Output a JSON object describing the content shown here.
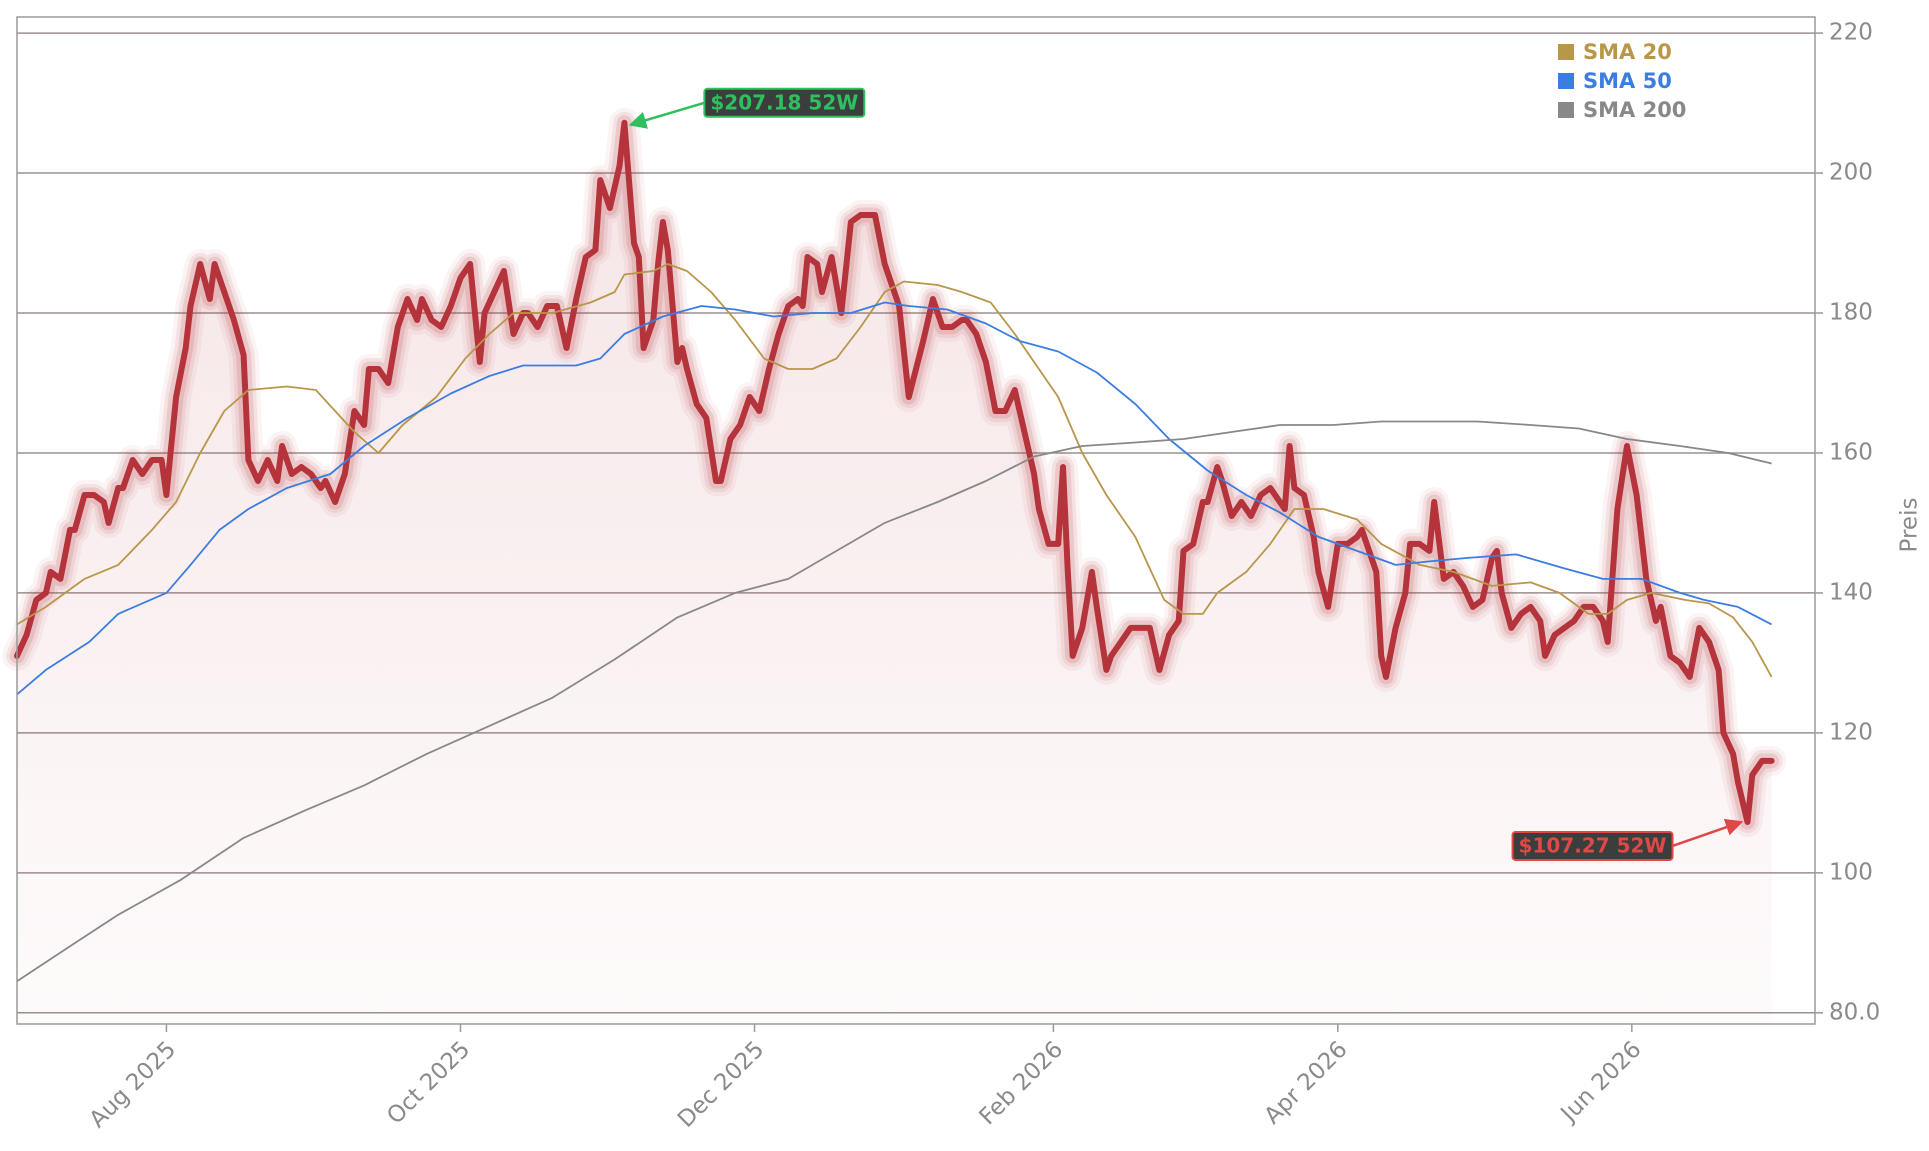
{
  "chart_data": {
    "type": "line",
    "y_axis_label": "Preis",
    "xlim": [
      0,
      373
    ],
    "ylim": [
      78.4,
      222.3
    ],
    "xticks": [
      {
        "value": 31,
        "label": "Aug 2025"
      },
      {
        "value": 92,
        "label": "Oct 2025"
      },
      {
        "value": 153,
        "label": "Dec 2025"
      },
      {
        "value": 215,
        "label": "Feb 2026"
      },
      {
        "value": 274,
        "label": "Apr 2026"
      },
      {
        "value": 335,
        "label": "Jun 2026"
      }
    ],
    "yticks": [
      {
        "value": 80,
        "label": "80.0"
      },
      100,
      120,
      140,
      160,
      180,
      200,
      220
    ],
    "grid": true,
    "legend": "upper right",
    "series": [
      {
        "color": "#b5343c",
        "area": true,
        "x": [
          0,
          2,
          4,
          6,
          7,
          9,
          11,
          12,
          14,
          16,
          18,
          19,
          21,
          22,
          24,
          26,
          28,
          30,
          31,
          33,
          35,
          36,
          38,
          40,
          41,
          43,
          45,
          47,
          48,
          50,
          52,
          54,
          55,
          57,
          59,
          61,
          63,
          64,
          66,
          68,
          70,
          72,
          73,
          75,
          77,
          79,
          81,
          83,
          84,
          86,
          88,
          90,
          92,
          94,
          96,
          97,
          99,
          101,
          103,
          105,
          106,
          108,
          110,
          112,
          114,
          116,
          118,
          120,
          121,
          123,
          125,
          126,
          128,
          129,
          130,
          132,
          133,
          134,
          135,
          137,
          138,
          139,
          141,
          143,
          145,
          146,
          148,
          150,
          152,
          154,
          156,
          158,
          160,
          162,
          163,
          164,
          166,
          167,
          169,
          171,
          173,
          175,
          178,
          180,
          183,
          185,
          188,
          190,
          192,
          194,
          196,
          197,
          199,
          201,
          203,
          205,
          207,
          208,
          211,
          212,
          214,
          216,
          217,
          218,
          219,
          221,
          223,
          224,
          226,
          227,
          229,
          231,
          233,
          235,
          237,
          239,
          241,
          242,
          244,
          246,
          247,
          249,
          250,
          252,
          254,
          256,
          258,
          260,
          262,
          263,
          264,
          265,
          267,
          269,
          270,
          272,
          274,
          276,
          278,
          279,
          282,
          283,
          284,
          286,
          288,
          289,
          291,
          293,
          294,
          296,
          298,
          300,
          302,
          304,
          306,
          307,
          308,
          310,
          312,
          314,
          316,
          317,
          319,
          321,
          323,
          325,
          327,
          329,
          330,
          332,
          334,
          336,
          338,
          340,
          341,
          343,
          345,
          347,
          349,
          351,
          353,
          354,
          356,
          357,
          359,
          360,
          362,
          364
        ],
        "values": [
          131,
          134,
          139,
          140,
          143,
          142,
          149,
          149,
          154,
          154,
          153,
          150,
          155,
          155,
          159,
          157,
          159,
          159,
          154,
          168,
          175,
          181,
          187,
          182,
          187,
          183,
          179,
          174,
          159,
          156,
          159,
          156,
          161,
          157,
          158,
          157,
          155,
          156,
          153,
          157,
          166,
          164,
          172,
          172,
          170,
          178,
          182,
          179,
          182,
          179,
          178,
          181,
          185,
          187,
          173,
          180,
          183,
          186,
          177,
          180,
          180,
          178,
          181,
          181,
          175,
          182,
          188,
          189,
          199,
          195,
          201,
          207.18,
          190,
          188,
          175,
          179,
          187,
          193,
          189,
          173,
          175,
          172,
          167,
          165,
          156,
          156,
          162,
          164,
          168,
          166,
          172,
          177,
          181,
          182,
          181,
          188,
          187,
          183,
          188,
          180,
          193,
          194,
          194,
          187,
          181,
          168,
          176,
          182,
          178,
          178,
          179,
          179,
          177,
          173,
          166,
          166,
          169,
          166,
          157,
          152,
          147,
          147,
          158,
          143,
          131,
          135,
          143,
          138,
          129,
          131,
          133,
          135,
          135,
          135,
          129,
          134,
          136,
          146,
          147,
          153,
          153,
          158,
          156,
          151,
          153,
          151,
          154,
          155,
          153,
          152,
          161,
          155,
          154,
          148,
          143,
          138,
          147,
          147,
          148,
          149,
          143,
          131,
          128,
          135,
          140,
          147,
          147,
          146,
          153,
          142,
          143,
          141,
          138,
          139,
          145,
          146,
          140,
          135,
          137,
          138,
          136,
          131,
          134,
          135,
          136,
          138,
          138,
          136,
          133,
          152,
          161,
          154,
          142,
          136,
          138,
          131,
          130,
          128,
          135,
          133,
          129,
          120,
          117,
          113,
          107.27,
          114,
          116,
          116
        ]
      },
      {
        "name": "SMA 20",
        "color": "#b8964a",
        "x": [
          0,
          6,
          14,
          21,
          28,
          33,
          38,
          43,
          48,
          56,
          62,
          66,
          70,
          75,
          80,
          87,
          93,
          98,
          103,
          111,
          119,
          124,
          126,
          132,
          135,
          139,
          144,
          149,
          155,
          160,
          165,
          170,
          175,
          180,
          184,
          191,
          196,
          202,
          207,
          212,
          216,
          221,
          226,
          232,
          238,
          242,
          246,
          249,
          255,
          260,
          265,
          271,
          278,
          283,
          291,
          298,
          306,
          314,
          320,
          326,
          330,
          334,
          339,
          346,
          351,
          356,
          360,
          364
        ],
        "values": [
          135.5,
          138,
          142,
          144,
          149,
          153,
          160,
          166,
          169,
          169.5,
          169,
          166,
          163,
          160,
          164,
          168,
          173.5,
          177,
          180,
          180,
          181.5,
          183,
          185.5,
          186,
          187,
          186,
          183,
          179,
          173.5,
          172,
          172,
          173.5,
          178,
          183,
          184.5,
          184,
          183,
          181.5,
          177,
          172,
          168,
          160,
          154,
          148,
          139,
          137,
          137,
          140,
          143,
          147,
          152,
          152,
          150.5,
          147,
          144,
          143,
          141,
          141.5,
          140,
          137,
          137,
          139,
          140,
          139,
          138.5,
          136.5,
          133,
          128
        ]
      },
      {
        "name": "SMA 50",
        "color": "#3b7de0",
        "x": [
          0,
          6,
          15,
          21,
          31,
          36,
          42,
          48,
          56,
          65,
          72,
          81,
          90,
          98,
          105,
          116,
          121,
          126,
          134,
          142,
          149,
          157,
          165,
          173,
          180,
          185,
          193,
          201,
          208,
          216,
          224,
          232,
          239,
          247,
          255,
          262,
          270,
          278,
          286,
          293,
          301,
          311,
          316,
          321,
          329,
          337,
          345,
          350,
          357,
          364
        ],
        "values": [
          125.5,
          129,
          133,
          137,
          140,
          144,
          149,
          152,
          155,
          157,
          161,
          165,
          168.5,
          171,
          172.5,
          172.5,
          173.5,
          177,
          179.5,
          181,
          180.5,
          179.5,
          180,
          180,
          181.5,
          181,
          180.5,
          178.5,
          176,
          174.5,
          171.5,
          167,
          162,
          157.5,
          154,
          151.5,
          148,
          146,
          144,
          144.5,
          145,
          145.5,
          144.5,
          143.5,
          142,
          142,
          140,
          139,
          138,
          135.5
        ]
      },
      {
        "name": "SMA 200",
        "color": "#888888",
        "x": [
          0,
          11,
          21,
          34,
          47,
          60,
          72,
          85,
          98,
          111,
          124,
          137,
          149,
          160,
          170,
          180,
          191,
          201,
          211,
          221,
          232,
          242,
          252,
          262,
          273,
          283,
          293,
          303,
          314,
          324,
          334,
          345,
          355,
          364
        ],
        "values": [
          84.5,
          89.5,
          94,
          99,
          105,
          109,
          112.5,
          117,
          121,
          125,
          130.5,
          136.5,
          140,
          142,
          146,
          150,
          153,
          156,
          159.5,
          161,
          161.5,
          162,
          163,
          164,
          164,
          164.5,
          164.5,
          164.5,
          164,
          163.5,
          162,
          161,
          160,
          158.5
        ]
      }
    ],
    "annotations": [
      {
        "text": "$207.18 52W",
        "x": 126,
        "y": 207.18,
        "color": "#2fbf5f"
      },
      {
        "text": "$107.27 52W",
        "x": 359,
        "y": 107.27,
        "color": "#e04848"
      }
    ]
  }
}
